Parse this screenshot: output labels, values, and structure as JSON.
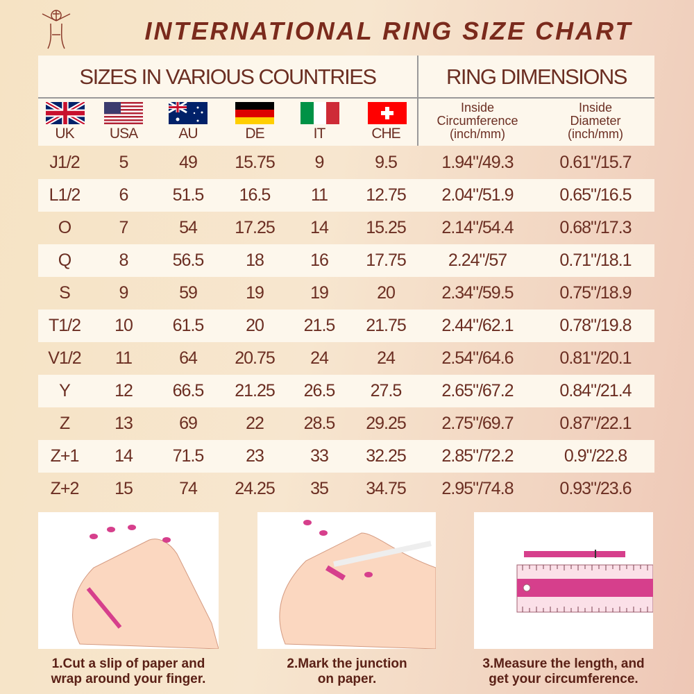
{
  "title": "INTERNATIONAL RING SIZE CHART",
  "header": {
    "sizes_section": "SIZES IN VARIOUS COUNTRIES",
    "dimensions_section": "RING DIMENSIONS",
    "countries": [
      {
        "code": "UK",
        "flag": "uk-flag"
      },
      {
        "code": "USA",
        "flag": "usa-flag"
      },
      {
        "code": "AU",
        "flag": "australia-flag"
      },
      {
        "code": "DE",
        "flag": "germany-flag"
      },
      {
        "code": "IT",
        "flag": "italy-flag"
      },
      {
        "code": "CHE",
        "flag": "switzerland-flag"
      }
    ],
    "circumference": [
      "Inside",
      "Circumference",
      "(inch/mm)"
    ],
    "diameter": [
      "Inside",
      "Diameter",
      "(inch/mm)"
    ]
  },
  "rows": [
    [
      "J1/2",
      "5",
      "49",
      "15.75",
      "9",
      "9.5",
      "1.94\"/49.3",
      "0.61\"/15.7"
    ],
    [
      "L1/2",
      "6",
      "51.5",
      "16.5",
      "11",
      "12.75",
      "2.04\"/51.9",
      "0.65\"/16.5"
    ],
    [
      "O",
      "7",
      "54",
      "17.25",
      "14",
      "15.25",
      "2.14\"/54.4",
      "0.68\"/17.3"
    ],
    [
      "Q",
      "8",
      "56.5",
      "18",
      "16",
      "17.75",
      "2.24\"/57",
      "0.71\"/18.1"
    ],
    [
      "S",
      "9",
      "59",
      "19",
      "19",
      "20",
      "2.34\"/59.5",
      "0.75\"/18.9"
    ],
    [
      "T1/2",
      "10",
      "61.5",
      "20",
      "21.5",
      "21.75",
      "2.44\"/62.1",
      "0.78\"/19.8"
    ],
    [
      "V1/2",
      "11",
      "64",
      "20.75",
      "24",
      "24",
      "2.54\"/64.6",
      "0.81\"/20.1"
    ],
    [
      "Y",
      "12",
      "66.5",
      "21.25",
      "26.5",
      "27.5",
      "2.65\"/67.2",
      "0.84\"/21.4"
    ],
    [
      "Z",
      "13",
      "69",
      "22",
      "28.5",
      "29.25",
      "2.75\"/69.7",
      "0.87\"/22.1"
    ],
    [
      "Z+1",
      "14",
      "71.5",
      "23",
      "33",
      "32.25",
      "2.85\"/72.2",
      "0.9\"/22.8"
    ],
    [
      "Z+2",
      "15",
      "74",
      "24.25",
      "35",
      "34.75",
      "2.95\"/74.8",
      "0.93\"/23.6"
    ]
  ],
  "steps": [
    {
      "line1": "1.Cut a slip of paper and",
      "line2": "wrap around your finger."
    },
    {
      "line1": "2.Mark the junction",
      "line2": "on paper."
    },
    {
      "line1": "3.Measure the length, and",
      "line2": "get your circumference."
    }
  ],
  "colors": {
    "text": "#6b2e22",
    "accent_pink": "#d63f8c",
    "row_highlight": "#fdf7ec"
  }
}
